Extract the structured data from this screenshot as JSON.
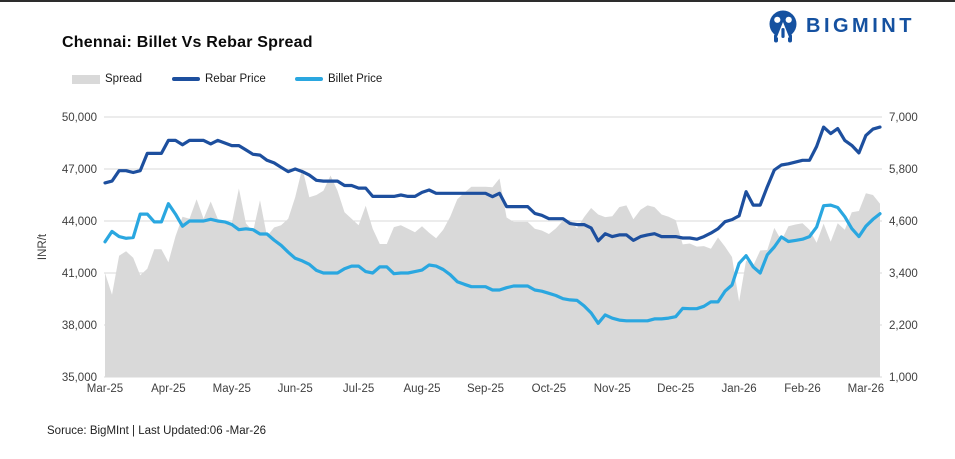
{
  "meta": {
    "title": "Chennai: Billet Vs Rebar Spread",
    "brand": "BIGMINT",
    "brand_color": "#1551a0",
    "source_note": "Soruce: BigMInt | Last Updated:06 -Mar-26"
  },
  "legend": [
    {
      "label": "Spread",
      "swatch": "area",
      "color": "#d9d9d9"
    },
    {
      "label": "Rebar Price",
      "swatch": "line",
      "color": "#1d4f9e"
    },
    {
      "label": "Billet Price",
      "swatch": "line",
      "color": "#2aa7e0"
    }
  ],
  "chart_data": {
    "type": "area",
    "subtype": "combo-area-line",
    "title": "Chennai: Billet Vs Rebar Spread",
    "grid": true,
    "x_categories": [
      "Mar-25",
      "Apr-25",
      "May-25",
      "Jun-25",
      "Jul-25",
      "Aug-25",
      "Sep-25",
      "Oct-25",
      "Nov-25",
      "Dec-25",
      "Jan-26",
      "Feb-26",
      "Mar-26"
    ],
    "x_tick_indices": [
      0,
      9,
      18,
      27,
      36,
      45,
      54,
      63,
      72,
      81,
      90,
      99,
      108
    ],
    "n_points": 111,
    "y_left": {
      "label": "INR/t",
      "min": 35000,
      "max": 50000,
      "ticks": [
        50000,
        47000,
        44000,
        41000,
        38000,
        35000
      ]
    },
    "y_right": {
      "label": "",
      "min": 1000,
      "max": 7000,
      "ticks": [
        7000,
        5800,
        4600,
        3400,
        2200,
        1000
      ]
    },
    "series": [
      {
        "name": "Spread",
        "axis": "right",
        "type": "area",
        "color": "#d9d9d9",
        "values": [
          3400,
          2900,
          3800,
          3900,
          3750,
          3350,
          3500,
          3950,
          3950,
          3650,
          4250,
          4700,
          4650,
          5100,
          4650,
          5050,
          4650,
          4550,
          4550,
          5350,
          4550,
          4350,
          5080,
          4250,
          4450,
          4500,
          4650,
          5150,
          5820,
          5150,
          5200,
          5300,
          5650,
          5300,
          4800,
          4650,
          4500,
          4950,
          4420,
          4070,
          4070,
          4460,
          4500,
          4420,
          4340,
          4480,
          4330,
          4200,
          4400,
          4700,
          5100,
          5250,
          5390,
          5390,
          5390,
          5380,
          5580,
          4680,
          4580,
          4580,
          4580,
          4420,
          4380,
          4300,
          4430,
          4610,
          4630,
          4430,
          4690,
          4900,
          4750,
          4690,
          4710,
          4920,
          4960,
          4640,
          4860,
          4960,
          4920,
          4750,
          4700,
          4620,
          4060,
          4080,
          4010,
          4020,
          3960,
          4220,
          4010,
          3770,
          2740,
          3690,
          3570,
          3920,
          3930,
          4440,
          4150,
          4480,
          4520,
          4550,
          4400,
          4100,
          4540,
          4120,
          4550,
          4400,
          4800,
          4830,
          5240,
          5200,
          5000
        ]
      },
      {
        "name": "Rebar Price",
        "axis": "left",
        "type": "line",
        "color": "#1d4f9e",
        "values": [
          46200,
          46300,
          46900,
          46900,
          46800,
          46900,
          47900,
          47900,
          47900,
          48650,
          48650,
          48400,
          48650,
          48650,
          48650,
          48450,
          48650,
          48500,
          48350,
          48350,
          48100,
          47850,
          47800,
          47500,
          47350,
          47100,
          46850,
          47000,
          46850,
          46650,
          46350,
          46300,
          46300,
          46300,
          46050,
          46050,
          45900,
          45900,
          45420,
          45420,
          45420,
          45420,
          45500,
          45420,
          45420,
          45650,
          45790,
          45600,
          45600,
          45600,
          45600,
          45600,
          45600,
          45600,
          45600,
          45400,
          45600,
          44830,
          44830,
          44830,
          44830,
          44440,
          44330,
          44130,
          44130,
          44130,
          43850,
          43790,
          43790,
          43600,
          42850,
          43270,
          43100,
          43200,
          43200,
          42880,
          43100,
          43200,
          43270,
          43100,
          43100,
          43100,
          43020,
          43020,
          42950,
          43100,
          43300,
          43550,
          43960,
          44080,
          44300,
          45690,
          44920,
          44920,
          45980,
          46940,
          47230,
          47300,
          47400,
          47500,
          47500,
          48300,
          49420,
          49040,
          49330,
          48650,
          48360,
          47930,
          48940,
          49300,
          49420
        ]
      },
      {
        "name": "Billet Price",
        "axis": "left",
        "type": "line",
        "color": "#2aa7e0",
        "values": [
          42800,
          43400,
          43100,
          43000,
          43050,
          44400,
          44400,
          43950,
          43950,
          45000,
          44400,
          43700,
          44000,
          44000,
          44000,
          44100,
          44000,
          43950,
          43800,
          43500,
          43550,
          43500,
          43250,
          43250,
          42900,
          42600,
          42200,
          41850,
          41700,
          41500,
          41150,
          41000,
          41000,
          41000,
          41250,
          41400,
          41400,
          41080,
          41000,
          41350,
          41350,
          40960,
          41000,
          41000,
          41080,
          41170,
          41460,
          41400,
          41200,
          40900,
          40500,
          40350,
          40210,
          40210,
          40210,
          40020,
          40020,
          40150,
          40250,
          40250,
          40250,
          40020,
          39950,
          39830,
          39700,
          39520,
          39450,
          39420,
          39100,
          38700,
          38100,
          38580,
          38390,
          38280,
          38240,
          38240,
          38240,
          38240,
          38350,
          38350,
          38400,
          38480,
          38960,
          38940,
          38940,
          39080,
          39340,
          39330,
          39950,
          40310,
          41560,
          42000,
          41350,
          41000,
          42050,
          42500,
          43080,
          42820,
          42880,
          42950,
          43100,
          43650,
          44880,
          44920,
          44780,
          44250,
          43560,
          43100,
          43700,
          44100,
          44420
        ]
      }
    ]
  }
}
